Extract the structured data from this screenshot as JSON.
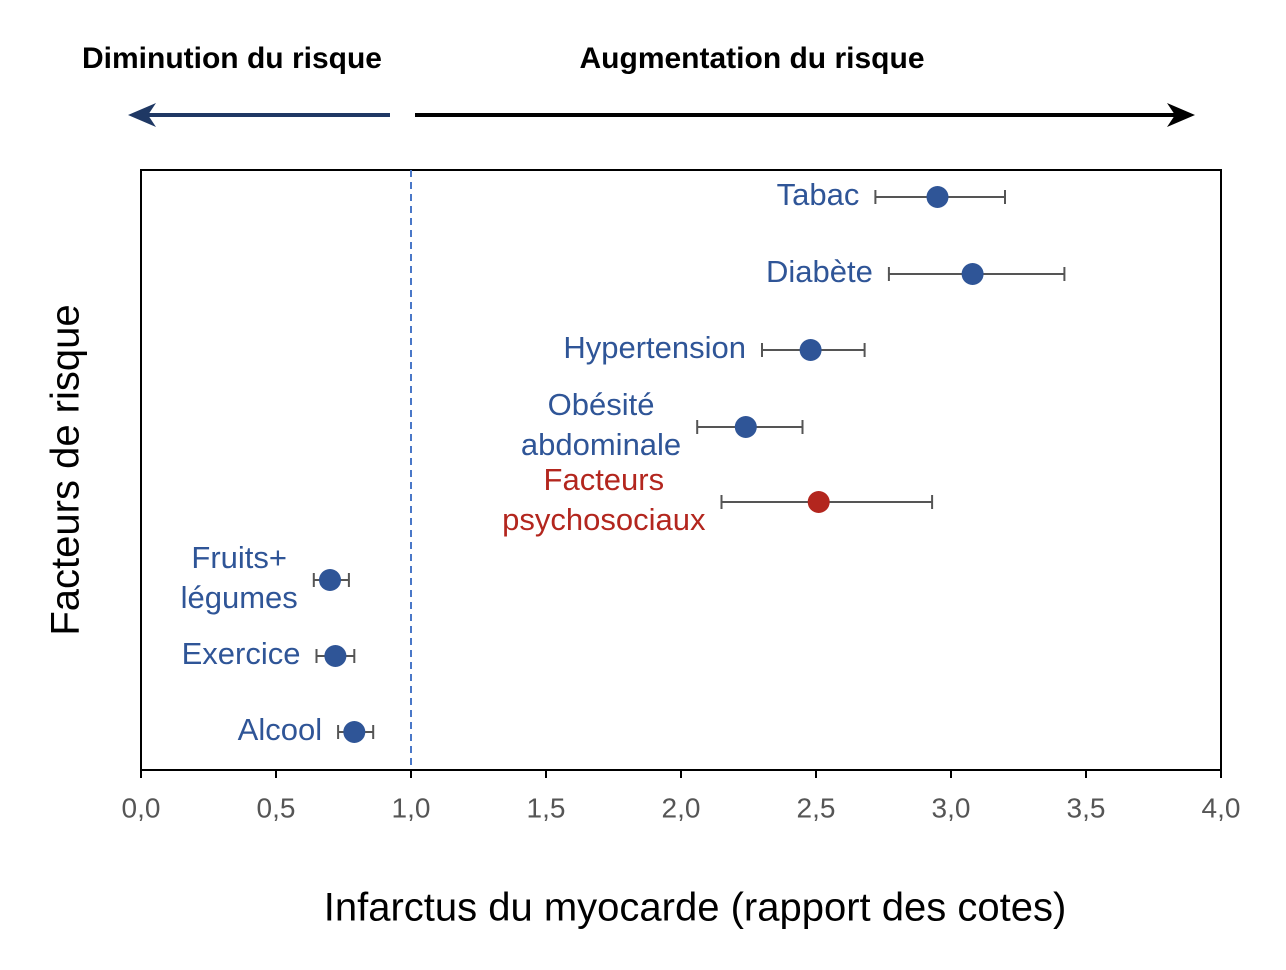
{
  "chart_data": {
    "type": "forest",
    "header_left": "Diminution du risque",
    "header_right": "Augmentation du risque",
    "xlabel": "Infarctus du myocarde (rapport des cotes)",
    "ylabel": "Facteurs de risque",
    "xlim": [
      0,
      4
    ],
    "xticks": [
      {
        "value": 0,
        "label": "0,0"
      },
      {
        "value": 0.5,
        "label": "0,5"
      },
      {
        "value": 1,
        "label": "1,0"
      },
      {
        "value": 1.5,
        "label": "1,5"
      },
      {
        "value": 2,
        "label": "2,0"
      },
      {
        "value": 2.5,
        "label": "2,5"
      },
      {
        "value": 3,
        "label": "3,0"
      },
      {
        "value": 3.5,
        "label": "3,5"
      },
      {
        "value": 4,
        "label": "4,0"
      }
    ],
    "reference_line": 1,
    "categories": [
      [
        "Tabac"
      ],
      [
        "Diabète"
      ],
      [
        "Hypertension"
      ],
      [
        "Obésité",
        "abdominale"
      ],
      [
        "Facteurs",
        "psychosociaux"
      ],
      [
        "Fruits+",
        "légumes"
      ],
      [
        "Exercice"
      ],
      [
        "Alcool"
      ]
    ],
    "values": [
      2.95,
      3.08,
      2.48,
      2.24,
      2.51,
      0.7,
      0.72,
      0.79
    ],
    "ci_low": [
      2.72,
      2.77,
      2.3,
      2.06,
      2.15,
      0.64,
      0.65,
      0.73
    ],
    "ci_high": [
      3.2,
      3.42,
      2.68,
      2.45,
      2.93,
      0.77,
      0.79,
      0.86
    ],
    "colors": [
      "#2f5597",
      "#2f5597",
      "#2f5597",
      "#2f5597",
      "#b3261e",
      "#2f5597",
      "#2f5597",
      "#2f5597"
    ]
  }
}
